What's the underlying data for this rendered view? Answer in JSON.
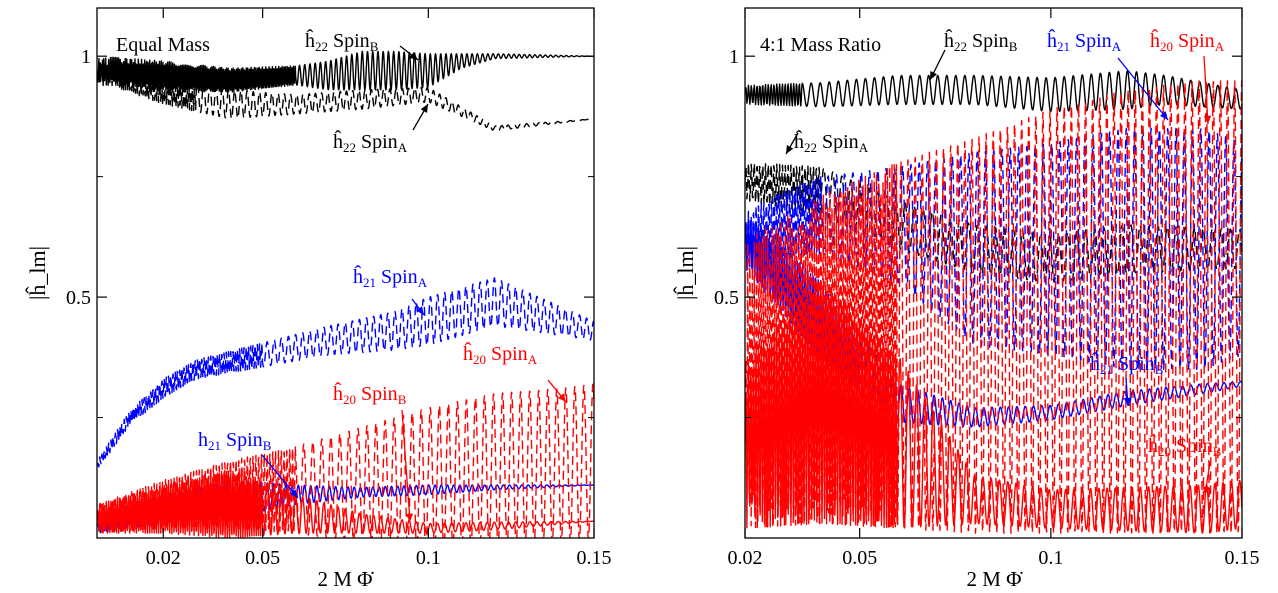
{
  "chart_data": [
    {
      "type": "line",
      "title": "Equal Mass",
      "xlabel": "2 M Φ̇",
      "ylabel": "|ĥ_lm|",
      "xticks": [
        "0.02",
        "0.05",
        "0.1",
        "0.15"
      ],
      "xtick_values": [
        0.02,
        0.05,
        0.1,
        0.15
      ],
      "yticks": [
        "1",
        "0.5"
      ],
      "ytick_values": [
        1.0,
        0.5
      ],
      "xlim": [
        0.0,
        0.15
      ],
      "ylim": [
        0.0,
        1.1
      ],
      "series": [
        {
          "id": "h22B",
          "color": "#000000",
          "dash": false,
          "osc_end": 0.06,
          "x": [
            0.0,
            0.02,
            0.04,
            0.06,
            0.07,
            0.08,
            0.09,
            0.1,
            0.11,
            0.12,
            0.15
          ],
          "y": [
            0.97,
            0.96,
            0.95,
            0.96,
            0.96,
            0.97,
            0.97,
            0.97,
            0.99,
            1.0,
            1.0
          ],
          "amp": [
            0.03,
            0.03,
            0.025,
            0.02,
            0.03,
            0.04,
            0.04,
            0.035,
            0.015,
            0.005,
            0.0
          ],
          "cycles": 95
        },
        {
          "id": "h22A",
          "color": "#000000",
          "dash": true,
          "osc_end": 0.03,
          "x": [
            0.0,
            0.02,
            0.04,
            0.06,
            0.08,
            0.1,
            0.12,
            0.15
          ],
          "y": [
            0.97,
            0.93,
            0.9,
            0.9,
            0.91,
            0.92,
            0.85,
            0.87
          ],
          "amp": [
            0.02,
            0.03,
            0.03,
            0.02,
            0.02,
            0.015,
            0.005,
            0.0
          ],
          "cycles": 80
        },
        {
          "id": "h21A",
          "color": "#0000ff",
          "dash": true,
          "osc_end": 0.05,
          "x": [
            0.0,
            0.01,
            0.02,
            0.03,
            0.05,
            0.07,
            0.09,
            0.1,
            0.12,
            0.13,
            0.15
          ],
          "y": [
            0.15,
            0.25,
            0.31,
            0.35,
            0.38,
            0.41,
            0.43,
            0.45,
            0.49,
            0.47,
            0.43
          ],
          "amp": [
            0.01,
            0.015,
            0.02,
            0.02,
            0.025,
            0.03,
            0.04,
            0.05,
            0.05,
            0.04,
            0.02
          ],
          "cycles": 70
        },
        {
          "id": "h21B",
          "color": "#0000ff",
          "dash": false,
          "osc_end": 0.04,
          "x": [
            0.0,
            0.02,
            0.04,
            0.06,
            0.08,
            0.1,
            0.12,
            0.15
          ],
          "y": [
            0.03,
            0.06,
            0.08,
            0.09,
            0.095,
            0.1,
            0.105,
            0.11
          ],
          "amp": [
            0.02,
            0.03,
            0.04,
            0.02,
            0.01,
            0.01,
            0.005,
            0.0
          ],
          "cycles": 80
        },
        {
          "id": "h20A",
          "color": "#ff0000",
          "dash": true,
          "osc_end": 0.06,
          "x": [
            0.0,
            0.02,
            0.04,
            0.06,
            0.08,
            0.1,
            0.12,
            0.14,
            0.15
          ],
          "y": [
            0.04,
            0.07,
            0.09,
            0.1,
            0.11,
            0.12,
            0.14,
            0.15,
            0.16
          ],
          "amp": [
            0.03,
            0.05,
            0.07,
            0.09,
            0.12,
            0.15,
            0.16,
            0.16,
            0.16
          ],
          "cycles": 55
        },
        {
          "id": "h20B",
          "color": "#ff0000",
          "dash": false,
          "osc_end": 0.05,
          "x": [
            0.0,
            0.02,
            0.04,
            0.06,
            0.08,
            0.1,
            0.12,
            0.15
          ],
          "y": [
            0.04,
            0.06,
            0.07,
            0.05,
            0.03,
            0.02,
            0.025,
            0.035
          ],
          "amp": [
            0.03,
            0.05,
            0.07,
            0.04,
            0.02,
            0.01,
            0.008,
            0.0
          ],
          "cycles": 70
        }
      ],
      "annotations": [
        {
          "prefix": "ĥ",
          "sub": "22",
          "label": "Spin",
          "labsub": "B",
          "color": "#000000"
        },
        {
          "prefix": "ĥ",
          "sub": "22",
          "label": "Spin",
          "labsub": "A",
          "color": "#000000"
        },
        {
          "prefix": "ĥ",
          "sub": "21",
          "label": "Spin",
          "labsub": "A",
          "color": "#0000ff"
        },
        {
          "prefix": "ĥ",
          "sub": "20",
          "label": "Spin",
          "labsub": "A",
          "color": "#ff0000"
        },
        {
          "prefix": "ĥ",
          "sub": "20",
          "label": "Spin",
          "labsub": "B",
          "color": "#ff0000"
        },
        {
          "prefix": "h",
          "sub": "21",
          "label": "Spin",
          "labsub": "B",
          "color": "#0000ff"
        }
      ]
    },
    {
      "type": "line",
      "title": "4:1 Mass Ratio",
      "xlabel": "2 M Φ̇",
      "ylabel": "|ĥ_lm|",
      "xticks": [
        "0.02",
        "0.05",
        "0.1",
        "0.15"
      ],
      "xtick_values": [
        0.02,
        0.05,
        0.1,
        0.15
      ],
      "yticks": [
        "1",
        "0.5"
      ],
      "ytick_values": [
        1.0,
        0.5
      ],
      "xlim": [
        0.02,
        0.15
      ],
      "ylim": [
        0.0,
        1.1
      ],
      "series": [
        {
          "id": "h22B",
          "color": "#000000",
          "dash": false,
          "osc_end": 0.035,
          "x": [
            0.02,
            0.04,
            0.06,
            0.08,
            0.1,
            0.12,
            0.13,
            0.15
          ],
          "y": [
            0.92,
            0.92,
            0.93,
            0.93,
            0.92,
            0.93,
            0.93,
            0.91
          ],
          "amp": [
            0.02,
            0.025,
            0.03,
            0.03,
            0.035,
            0.04,
            0.03,
            0.02
          ],
          "cycles": 55
        },
        {
          "id": "h22A",
          "color": "#000000",
          "dash": true,
          "osc_end": 0.04,
          "x": [
            0.02,
            0.04,
            0.06,
            0.08,
            0.1,
            0.12,
            0.15
          ],
          "y": [
            0.74,
            0.72,
            0.65,
            0.6,
            0.58,
            0.6,
            0.6
          ],
          "amp": [
            0.04,
            0.05,
            0.05,
            0.05,
            0.05,
            0.05,
            0.04
          ],
          "cycles": 55
        },
        {
          "id": "h21A",
          "color": "#0000ff",
          "dash": true,
          "osc_end": 0.04,
          "x": [
            0.02,
            0.03,
            0.04,
            0.06,
            0.08,
            0.1,
            0.12,
            0.14,
            0.15
          ],
          "y": [
            0.62,
            0.65,
            0.67,
            0.65,
            0.6,
            0.6,
            0.6,
            0.6,
            0.6
          ],
          "amp": [
            0.06,
            0.07,
            0.08,
            0.12,
            0.2,
            0.22,
            0.25,
            0.25,
            0.22
          ],
          "cycles": 60
        },
        {
          "id": "h21B",
          "color": "#0000ff",
          "dash": false,
          "osc_end": 0.05,
          "x": [
            0.02,
            0.04,
            0.06,
            0.08,
            0.1,
            0.12,
            0.14,
            0.15
          ],
          "y": [
            0.62,
            0.45,
            0.28,
            0.25,
            0.26,
            0.29,
            0.31,
            0.32
          ],
          "amp": [
            0.06,
            0.08,
            0.04,
            0.02,
            0.015,
            0.015,
            0.01,
            0.005
          ],
          "cycles": 60
        },
        {
          "id": "h20A",
          "color": "#ff0000",
          "dash": true,
          "osc_end": 0.06,
          "x": [
            0.02,
            0.04,
            0.06,
            0.08,
            0.1,
            0.12,
            0.14,
            0.15
          ],
          "y": [
            0.32,
            0.37,
            0.4,
            0.42,
            0.45,
            0.47,
            0.48,
            0.48
          ],
          "amp": [
            0.3,
            0.34,
            0.38,
            0.41,
            0.44,
            0.46,
            0.47,
            0.47
          ],
          "cycles": 70
        },
        {
          "id": "h20B",
          "color": "#ff0000",
          "dash": false,
          "osc_end": 0.06,
          "x": [
            0.02,
            0.04,
            0.06,
            0.08,
            0.1,
            0.12,
            0.14,
            0.15
          ],
          "y": [
            0.2,
            0.28,
            0.2,
            0.08,
            0.06,
            0.06,
            0.06,
            0.07
          ],
          "amp": [
            0.18,
            0.25,
            0.18,
            0.05,
            0.04,
            0.045,
            0.05,
            0.05
          ],
          "cycles": 60
        }
      ],
      "annotations": [
        {
          "prefix": "ĥ",
          "sub": "22",
          "label": "Spin",
          "labsub": "B",
          "color": "#000000"
        },
        {
          "prefix": "ĥ",
          "sub": "21",
          "label": "Spin",
          "labsub": "A",
          "color": "#0000ff"
        },
        {
          "prefix": "ĥ",
          "sub": "20",
          "label": "Spin",
          "labsub": "A",
          "color": "#ff0000"
        },
        {
          "prefix": "ĥ",
          "sub": "22",
          "label": "Spin",
          "labsub": "A",
          "color": "#000000"
        },
        {
          "prefix": "ĥ",
          "sub": "21",
          "label": "Spin",
          "labsub": "B",
          "color": "#0000ff"
        },
        {
          "prefix": "ĥ",
          "sub": "20",
          "label": "Spin",
          "labsub": "B",
          "color": "#ff0000"
        }
      ]
    }
  ]
}
